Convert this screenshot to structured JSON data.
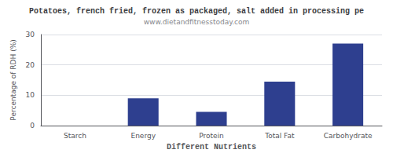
{
  "chart_data": {
    "type": "bar",
    "title": "Potatoes, french fried, frozen as packaged, salt added in processing pe",
    "subtitle": "www.dietandfitnesstoday.com",
    "categories": [
      "Starch",
      "Energy",
      "Protein",
      "Total Fat",
      "Carbohydrate"
    ],
    "values": [
      0.0,
      9.0,
      4.5,
      14.5,
      27.0
    ],
    "color": "#2e3f8f",
    "xlabel": "Different Nutrients",
    "ylabel": "Percentage of RDH (%)",
    "ylim": [
      0,
      30
    ],
    "yticks": [
      0,
      10,
      20,
      30
    ],
    "grid": true
  }
}
